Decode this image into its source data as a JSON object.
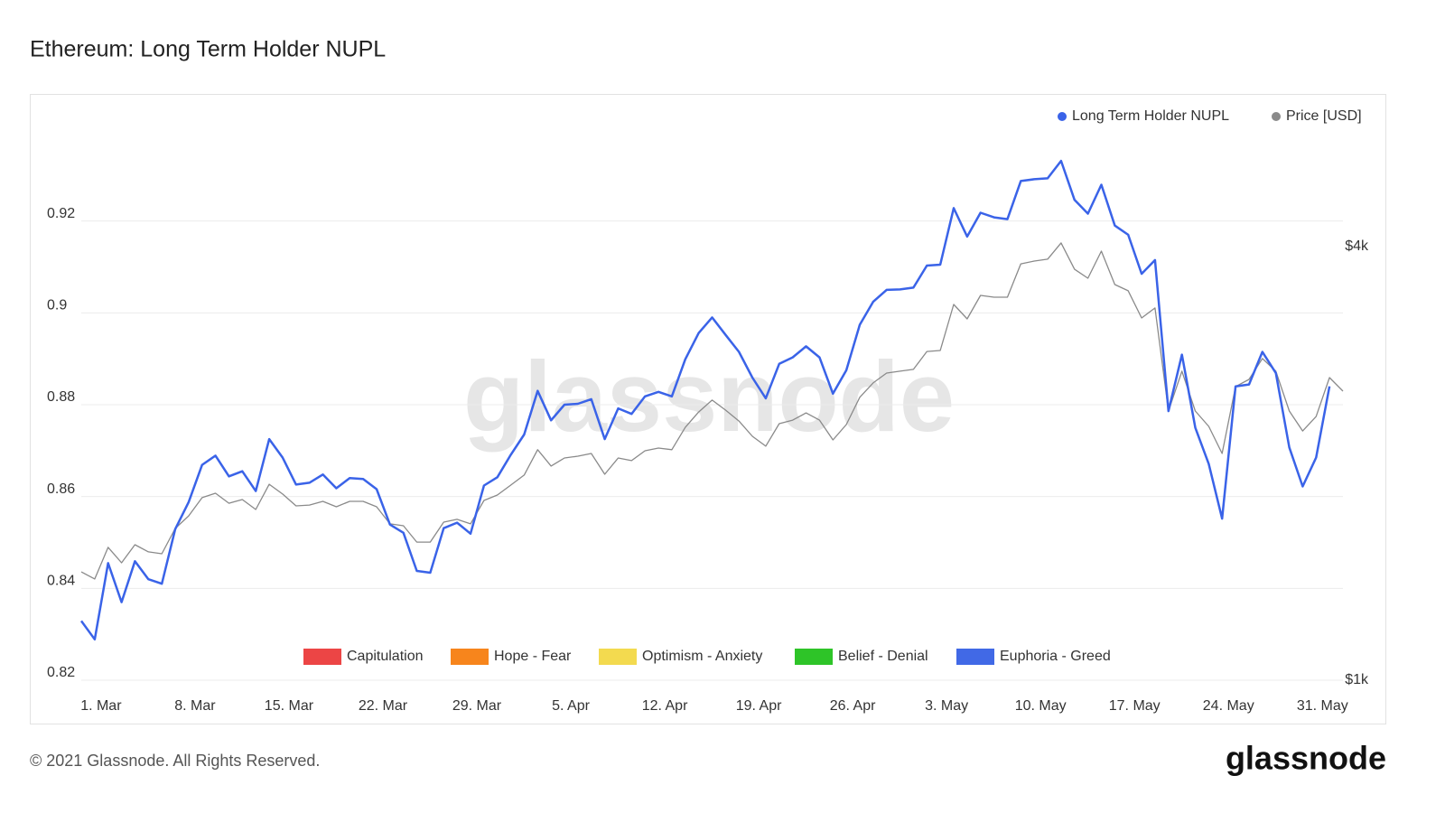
{
  "chart_data": {
    "type": "line",
    "title": "Ethereum: Long Term Holder NUPL",
    "watermark": "glassnode",
    "footer": "© 2021 Glassnode. All Rights Reserved.",
    "logo": "glassnode",
    "categories": [
      null,
      "1. Mar",
      null,
      null,
      null,
      null,
      null,
      null,
      "8. Mar",
      null,
      null,
      null,
      null,
      null,
      null,
      "15. Mar",
      null,
      null,
      null,
      null,
      null,
      null,
      "22. Mar",
      null,
      null,
      null,
      null,
      null,
      null,
      "29. Mar",
      null,
      null,
      null,
      null,
      null,
      null,
      "5. Apr",
      null,
      null,
      null,
      null,
      null,
      null,
      "12. Apr",
      null,
      null,
      null,
      null,
      null,
      null,
      "19. Apr",
      null,
      null,
      null,
      null,
      null,
      null,
      "26. Apr",
      null,
      null,
      null,
      null,
      null,
      null,
      "3. May",
      null,
      null,
      null,
      null,
      null,
      null,
      "10. May",
      null,
      null,
      null,
      null,
      null,
      null,
      "17. May",
      null,
      null,
      null,
      null,
      null,
      null,
      "24. May",
      null,
      null,
      null,
      null,
      null,
      null,
      "31. May",
      null,
      null
    ],
    "series": [
      {
        "name": "Long Term Holder NUPL",
        "color": "#3a63e8",
        "values": [
          0.8329,
          0.8289,
          0.8455,
          0.837,
          0.8459,
          0.842,
          0.841,
          0.8529,
          0.8588,
          0.8669,
          0.8689,
          0.8644,
          0.8655,
          0.8612,
          0.8725,
          0.8685,
          0.8626,
          0.863,
          0.8648,
          0.8618,
          0.864,
          0.8638,
          0.8616,
          0.8539,
          0.8521,
          0.8438,
          0.8434,
          0.8531,
          0.8543,
          0.8519,
          0.8624,
          0.8642,
          0.8691,
          0.8735,
          0.883,
          0.8766,
          0.88,
          0.8802,
          0.8812,
          0.8725,
          0.8792,
          0.878,
          0.8818,
          0.8828,
          0.8818,
          0.8899,
          0.8956,
          0.899,
          0.8952,
          0.8915,
          0.8859,
          0.8814,
          0.8889,
          0.8903,
          0.8927,
          0.8903,
          0.8824,
          0.8875,
          0.8974,
          0.9024,
          0.905,
          0.9051,
          0.9055,
          0.9103,
          0.9105,
          0.9228,
          0.9166,
          0.9218,
          0.9208,
          0.9204,
          0.9287,
          0.9291,
          0.9293,
          0.9331,
          0.9246,
          0.9216,
          0.9279,
          0.919,
          0.917,
          0.9085,
          0.9115,
          0.8786,
          0.8909,
          0.875,
          0.8671,
          0.8552,
          0.884,
          0.8844,
          0.8915,
          0.8869,
          0.8707,
          0.8622,
          0.8685,
          0.884,
          null
        ]
      },
      {
        "name": "Price [USD]",
        "color": "#8a8a8a",
        "axis": "y2",
        "values": [
          1416,
          1384,
          1532,
          1458,
          1545,
          1510,
          1501,
          1628,
          1695,
          1797,
          1823,
          1765,
          1786,
          1730,
          1876,
          1818,
          1750,
          1755,
          1776,
          1745,
          1776,
          1776,
          1745,
          1652,
          1642,
          1558,
          1558,
          1661,
          1676,
          1652,
          1781,
          1812,
          1871,
          1932,
          2096,
          1989,
          2041,
          2053,
          2071,
          1937,
          2041,
          2024,
          2089,
          2107,
          2096,
          2252,
          2366,
          2458,
          2380,
          2298,
          2188,
          2120,
          2279,
          2305,
          2359,
          2305,
          2163,
          2272,
          2480,
          2597,
          2681,
          2697,
          2713,
          2873,
          2882,
          3342,
          3190,
          3440,
          3420,
          3420,
          3807,
          3841,
          3864,
          4071,
          3741,
          3635,
          3966,
          3562,
          3491,
          3200,
          3304,
          2373,
          2697,
          2373,
          2259,
          2071,
          2567,
          2627,
          2809,
          2697,
          2373,
          2226,
          2332,
          2642,
          2530
        ]
      }
    ],
    "ylim": [
      0.82,
      0.94
    ],
    "yticks": [
      0.82,
      0.84,
      0.86,
      0.88,
      0.9,
      0.92
    ],
    "y2lim": [
      1000,
      5866
    ],
    "y2ticks": [
      {
        "value": 1000,
        "label": "$1k"
      },
      {
        "value": 4000,
        "label": "$4k"
      }
    ],
    "y2log": true,
    "grid": true,
    "legend": "top-right",
    "zones": [
      {
        "name": "Capitulation",
        "color": "#ec4545"
      },
      {
        "name": "Hope - Fear",
        "color": "#f7851c"
      },
      {
        "name": "Optimism - Anxiety",
        "color": "#f3da4f"
      },
      {
        "name": "Belief - Denial",
        "color": "#2ec428"
      },
      {
        "name": "Euphoria - Greed",
        "color": "#4169e6"
      }
    ]
  }
}
